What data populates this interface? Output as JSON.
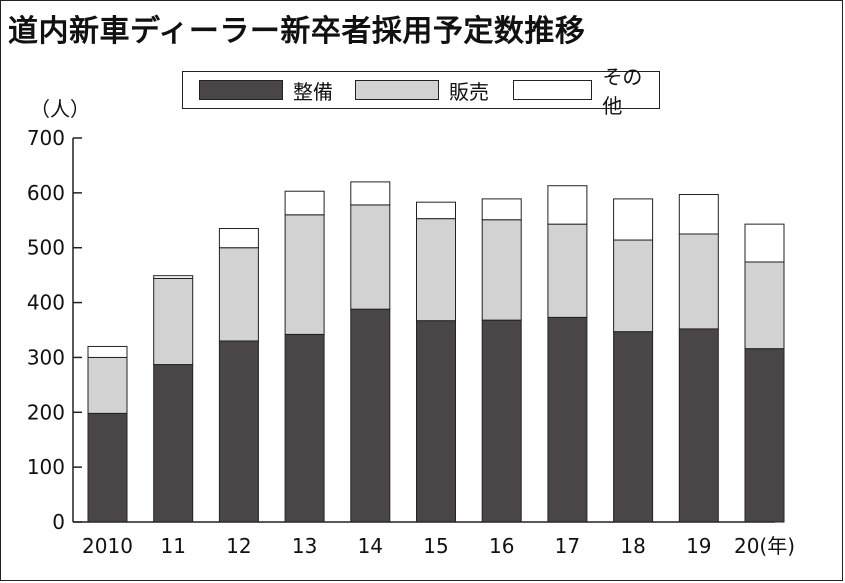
{
  "title": "道内新車ディーラー新卒者採用予定数推移",
  "y_unit": "（人）",
  "legend": [
    {
      "label": "整備",
      "color": "#4a4546"
    },
    {
      "label": "販売",
      "color": "#d2d2d2"
    },
    {
      "label": "その他",
      "color": "#ffffff"
    }
  ],
  "chart_data": {
    "type": "bar",
    "stacked": true,
    "categories": [
      "2010",
      "11",
      "12",
      "13",
      "14",
      "15",
      "16",
      "17",
      "18",
      "19",
      "20(年)"
    ],
    "series": [
      {
        "name": "整備",
        "color": "#4a4546",
        "values": [
          198,
          287,
          330,
          342,
          388,
          367,
          368,
          373,
          347,
          352,
          316
        ]
      },
      {
        "name": "販売",
        "color": "#d2d2d2",
        "values": [
          102,
          157,
          170,
          218,
          190,
          186,
          183,
          170,
          167,
          173,
          158
        ]
      },
      {
        "name": "その他",
        "color": "#ffffff",
        "values": [
          20,
          5,
          35,
          43,
          42,
          30,
          38,
          70,
          75,
          72,
          69
        ]
      }
    ],
    "ylim": [
      0,
      700
    ],
    "yticks": [
      0,
      100,
      200,
      300,
      400,
      500,
      600,
      700
    ],
    "grid": false,
    "legend_position": "top"
  }
}
